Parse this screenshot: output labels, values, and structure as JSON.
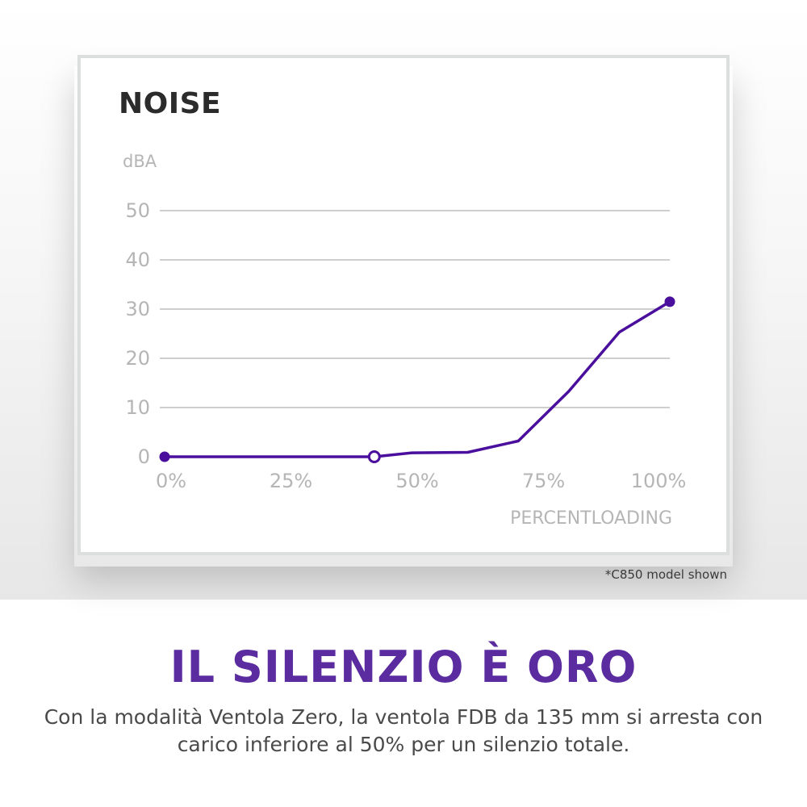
{
  "chart_data": {
    "type": "line",
    "title": "NOISE",
    "ylabel": "dBA",
    "xlabel": "PERCENTLOADING",
    "x_ticks": [
      {
        "value": 0,
        "label": "0%"
      },
      {
        "value": 25,
        "label": "25%"
      },
      {
        "value": 50,
        "label": "50%"
      },
      {
        "value": 75,
        "label": "75%"
      },
      {
        "value": 100,
        "label": "100%"
      }
    ],
    "y_ticks": [
      {
        "value": 0,
        "label": "0"
      },
      {
        "value": 10,
        "label": "10"
      },
      {
        "value": 20,
        "label": "20"
      },
      {
        "value": 30,
        "label": "30"
      },
      {
        "value": 40,
        "label": "40"
      },
      {
        "value": 50,
        "label": "50"
      }
    ],
    "xlim": [
      0,
      100
    ],
    "ylim": [
      0,
      50
    ],
    "grid": true,
    "series": [
      {
        "color": "#4a0f9c",
        "x": [
          0,
          41.5,
          49,
          60,
          70,
          80,
          90,
          100
        ],
        "y": [
          0,
          0,
          0.8,
          0.9,
          3.2,
          13.3,
          25.3,
          31.5
        ],
        "markers": [
          {
            "index": 0,
            "style": "filled"
          },
          {
            "index": 1,
            "style": "hollow"
          },
          {
            "index": 7,
            "style": "filled"
          }
        ]
      }
    ]
  },
  "footnote": "*C850 model shown",
  "headline": "IL SILENZIO È ORO",
  "description_lines": [
    "Con la modalità Ventola Zero, la ventola FDB da 135 mm si arresta con",
    "carico inferiore al 50% per un silenzio totale."
  ],
  "colors": {
    "line": "#4a0f9c",
    "headline": "#5b2ca0",
    "gridline": "#cfcfcf",
    "axis_text": "#b5b5b5",
    "card_border": "#dcdfdd"
  }
}
